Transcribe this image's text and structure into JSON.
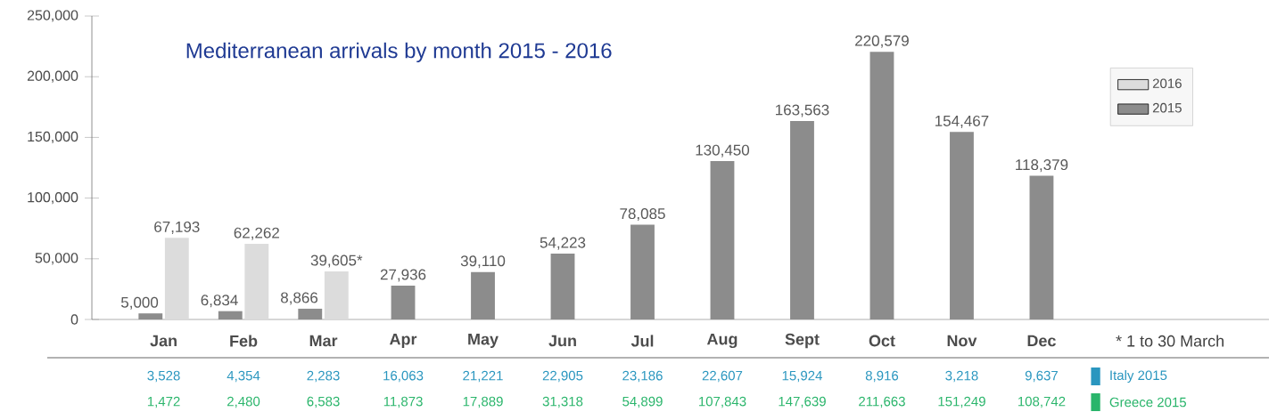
{
  "chart_data": {
    "type": "bar",
    "title": "Mediterranean arrivals by month 2015 - 2016",
    "categories": [
      "Jan",
      "Feb",
      "Mar",
      "Apr",
      "May",
      "Jun",
      "Jul",
      "Aug",
      "Sept",
      "Oct",
      "Nov",
      "Dec"
    ],
    "series": [
      {
        "name": "2015",
        "color": "#8c8c8c",
        "values": [
          5000,
          6834,
          8866,
          27936,
          39110,
          54223,
          78085,
          130450,
          163563,
          220579,
          154467,
          118379
        ],
        "value_labels": [
          "5,000",
          "6,834",
          "8,866",
          "27,936",
          "39,110",
          "54,223",
          "78,085",
          "130,450",
          "163,563",
          "220,579",
          "154,467",
          "118,379"
        ]
      },
      {
        "name": "2016",
        "color": "#dcdcdc",
        "values": [
          67193,
          62262,
          39605,
          null,
          null,
          null,
          null,
          null,
          null,
          null,
          null,
          null
        ],
        "value_labels": [
          "67,193",
          "62,262",
          "39,605*",
          null,
          null,
          null,
          null,
          null,
          null,
          null,
          null,
          null
        ]
      }
    ],
    "ylim": [
      0,
      250000
    ],
    "yticks": [
      {
        "value": 0,
        "label": "0"
      },
      {
        "value": 50000,
        "label": "50,000"
      },
      {
        "value": 100000,
        "label": "100,000"
      },
      {
        "value": 150000,
        "label": "150,000"
      },
      {
        "value": 200000,
        "label": "200,000"
      },
      {
        "value": 250000,
        "label": "250,000"
      }
    ],
    "legend": "top right",
    "grid": false,
    "annotations": [
      "* 1 to 30 March",
      "Italy 2015",
      "3,528",
      "4,354",
      "2,283",
      "16,063",
      "21,221",
      "22,905",
      "23,186",
      "22,607",
      "15,924",
      "8,916",
      "3,218",
      "9,637",
      "Greece 2015",
      "1,472",
      "2,480",
      "6,583",
      "11,873",
      "17,889",
      "31,318",
      "54,899",
      "107,843",
      "147,639",
      "211,663",
      "151,249",
      "108,742"
    ]
  }
}
